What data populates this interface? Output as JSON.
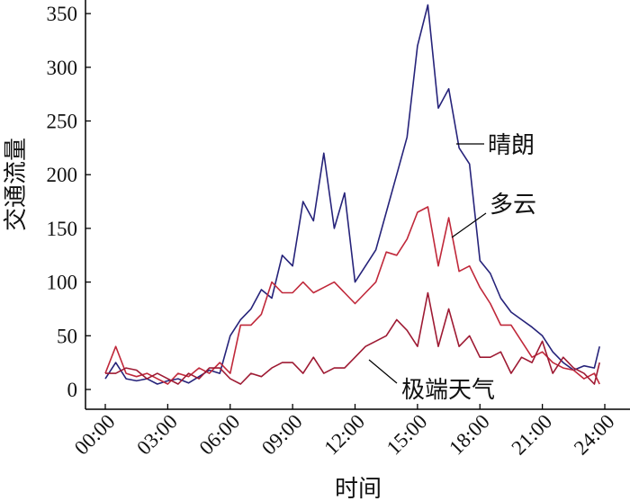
{
  "chart_data": {
    "type": "line",
    "title": "",
    "xlabel": "时间",
    "ylabel": "交通流量",
    "xlim": [
      0,
      24
    ],
    "ylim": [
      -15,
      360
    ],
    "x_ticks": [
      0,
      3,
      6,
      9,
      12,
      15,
      18,
      21,
      24
    ],
    "x_tick_labels": [
      "00:00",
      "03:00",
      "06:00",
      "09:00",
      "12:00",
      "15:00",
      "18:00",
      "21:00",
      "24:00"
    ],
    "y_ticks": [
      0,
      50,
      100,
      150,
      200,
      250,
      300,
      350
    ],
    "y_tick_labels": [
      "0",
      "50",
      "100",
      "150",
      "200",
      "250",
      "300",
      "350"
    ],
    "x": [
      0,
      0.5,
      1,
      1.5,
      2,
      2.5,
      3,
      3.5,
      4,
      4.5,
      5,
      5.5,
      6,
      6.5,
      7,
      7.5,
      8,
      8.5,
      9,
      9.5,
      10,
      10.5,
      11,
      11.5,
      12,
      12.5,
      13,
      13.5,
      14,
      14.5,
      15,
      15.5,
      16,
      16.5,
      17,
      17.5,
      18,
      18.5,
      19,
      19.5,
      20,
      20.5,
      21,
      21.5,
      22,
      22.5,
      23,
      23.5,
      23.75
    ],
    "series": [
      {
        "name": "晴朗",
        "color": "#26237a",
        "values": [
          10,
          25,
          10,
          8,
          10,
          5,
          8,
          10,
          6,
          12,
          18,
          15,
          50,
          65,
          75,
          93,
          85,
          125,
          115,
          175,
          157,
          220,
          150,
          183,
          100,
          115,
          130,
          165,
          200,
          235,
          320,
          358,
          262,
          280,
          225,
          210,
          120,
          108,
          85,
          72,
          65,
          58,
          50,
          35,
          25,
          18,
          22,
          20,
          40
        ]
      },
      {
        "name": "多云",
        "color": "#c0283a",
        "values": [
          15,
          40,
          15,
          12,
          15,
          10,
          5,
          15,
          12,
          20,
          15,
          25,
          15,
          60,
          60,
          70,
          100,
          90,
          90,
          100,
          90,
          95,
          100,
          90,
          80,
          90,
          100,
          128,
          125,
          140,
          165,
          170,
          115,
          160,
          110,
          115,
          95,
          80,
          60,
          60,
          45,
          30,
          35,
          25,
          20,
          18,
          10,
          15,
          5
        ]
      },
      {
        "name": "极端天气",
        "color": "#9e1a33",
        "values": [
          15,
          15,
          20,
          18,
          10,
          15,
          10,
          5,
          15,
          10,
          20,
          20,
          10,
          5,
          15,
          12,
          20,
          25,
          25,
          15,
          30,
          15,
          20,
          20,
          30,
          40,
          45,
          50,
          65,
          55,
          40,
          90,
          40,
          75,
          40,
          50,
          30,
          30,
          35,
          15,
          30,
          25,
          45,
          15,
          30,
          20,
          15,
          5,
          25
        ]
      }
    ],
    "annotations": [
      "晴朗",
      "多云",
      "极端天气"
    ],
    "grid": false,
    "legend": "none"
  }
}
